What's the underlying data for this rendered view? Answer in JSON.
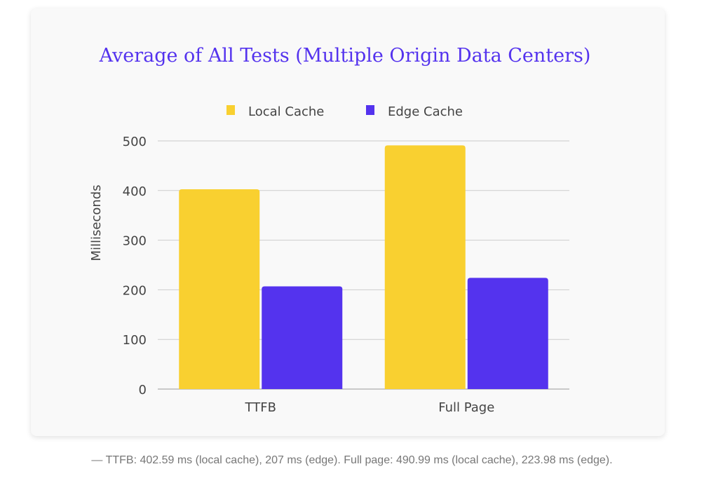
{
  "chart_data": {
    "type": "bar",
    "title": "Average of All Tests (Multiple Origin Data Centers)",
    "xlabel": "",
    "ylabel": "Milliseconds",
    "categories": [
      "TTFB",
      "Full Page"
    ],
    "series": [
      {
        "name": "Local Cache",
        "values": [
          402.59,
          490.99
        ],
        "color": "#f9d030"
      },
      {
        "name": "Edge Cache",
        "values": [
          207,
          223.98
        ],
        "color": "#5433ee"
      }
    ],
    "ylim": [
      0,
      500
    ],
    "yticks": [
      0,
      100,
      200,
      300,
      400,
      500
    ],
    "grid": true,
    "legend": "top",
    "title_color": "#5433ee"
  },
  "caption": "— TTFB: 402.59 ms (local cache), 207 ms (edge). Full page: 490.99 ms (local cache), 223.98 ms (edge)."
}
